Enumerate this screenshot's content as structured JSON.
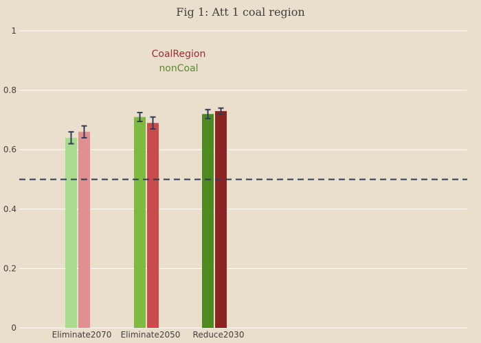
{
  "chart_data": {
    "type": "bar",
    "title": "Fig 1: Att 1 coal region",
    "xlabel": "",
    "ylabel": "",
    "categories": [
      "Eliminate2070",
      "Eliminate2050",
      "Reduce2030"
    ],
    "ylim": [
      0,
      1
    ],
    "yticks": [
      "0",
      "0.2",
      "0.4",
      "0.6",
      "0.8",
      "1"
    ],
    "grid": true,
    "reference_line": 0.5,
    "legend_position": "top-center",
    "legend": [
      {
        "label": "CoalRegion",
        "color": "#9a2e2e"
      },
      {
        "label": "nonCoal",
        "color": "#5a8a2a"
      }
    ],
    "series": [
      {
        "name": "nonCoal",
        "values": [
          0.64,
          0.71,
          0.72
        ],
        "error": [
          0.02,
          0.015,
          0.015
        ],
        "colors": [
          "#a8dc8c",
          "#7fba40",
          "#4d8a22"
        ]
      },
      {
        "name": "CoalRegion",
        "values": [
          0.66,
          0.69,
          0.73
        ],
        "error": [
          0.02,
          0.02,
          0.01
        ],
        "colors": [
          "#e09090",
          "#c84c4c",
          "#8c2424"
        ]
      }
    ],
    "colors": {
      "background": "#eadfcc",
      "grid": "#ffffff",
      "reference_line": "#2e3b55",
      "error_bar": "#2e3b55"
    }
  }
}
